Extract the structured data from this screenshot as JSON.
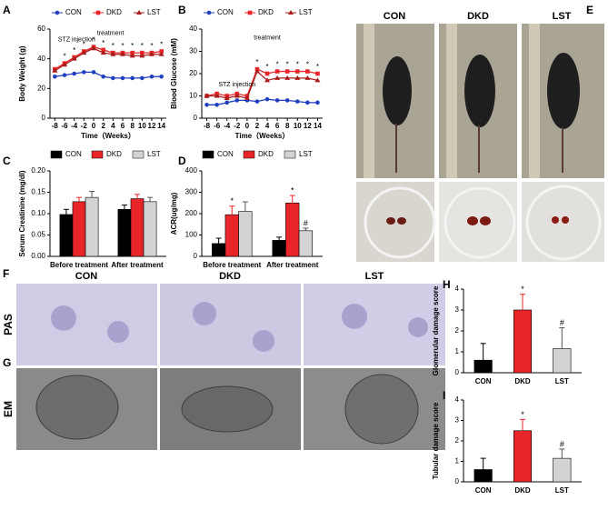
{
  "chart_data": [
    {
      "panel": "A",
      "type": "line",
      "xlabel": "Time（Weeks）",
      "ylabel": "Body Weight (g)",
      "x": [
        -8,
        -6,
        -4,
        -2,
        0,
        2,
        4,
        6,
        8,
        10,
        12,
        14
      ],
      "xlim": [
        -9,
        15
      ],
      "xticks": [
        -8,
        -6,
        -4,
        -2,
        0,
        2,
        4,
        6,
        8,
        10,
        12,
        14
      ],
      "ylim": [
        0,
        60
      ],
      "yticks": [
        0,
        20,
        40,
        60
      ],
      "annotations": [
        "STZ injection",
        "treatment"
      ],
      "series": [
        {
          "name": "CON",
          "color": "#1f3fbf",
          "values": [
            28,
            29,
            30,
            31,
            31,
            28,
            27,
            27,
            27,
            27,
            28,
            28
          ]
        },
        {
          "name": "DKD",
          "color": "#e8262a",
          "values": [
            33,
            37,
            41,
            45,
            48,
            46,
            44,
            44,
            44,
            44,
            44,
            45
          ],
          "marks": [
            null,
            "*",
            "*",
            "*",
            "*",
            "*",
            "*",
            "*",
            "*",
            "*",
            "*",
            "*"
          ]
        },
        {
          "name": "LST",
          "color": "#a81c1c",
          "values": [
            32,
            36,
            40,
            44,
            47,
            44,
            43,
            43,
            42,
            42,
            43,
            43
          ]
        }
      ]
    },
    {
      "panel": "B",
      "type": "line",
      "xlabel": "Time（Weeks）",
      "ylabel": "Blood Glucose (mM)",
      "x": [
        -8,
        -6,
        -4,
        -2,
        0,
        2,
        4,
        6,
        8,
        10,
        12,
        14
      ],
      "xlim": [
        -9,
        15
      ],
      "xticks": [
        -8,
        -6,
        -4,
        -2,
        0,
        2,
        4,
        6,
        8,
        10,
        12,
        14
      ],
      "ylim": [
        0,
        40
      ],
      "yticks": [
        0,
        10,
        20,
        30,
        40
      ],
      "annotations": [
        "STZ injection",
        "treatment"
      ],
      "series": [
        {
          "name": "CON",
          "color": "#1f3fbf",
          "values": [
            6,
            6,
            7,
            8,
            8,
            7.5,
            8.5,
            8,
            8,
            7.5,
            7,
            7
          ]
        },
        {
          "name": "DKD",
          "color": "#e8262a",
          "values": [
            10,
            11,
            10,
            11,
            10,
            22,
            20,
            21,
            21,
            21,
            21,
            20
          ],
          "marks": [
            null,
            null,
            null,
            null,
            null,
            "*",
            "*",
            "*",
            "*",
            "*",
            "*",
            "*"
          ]
        },
        {
          "name": "LST",
          "color": "#a81c1c",
          "values": [
            10,
            10,
            9,
            10,
            9,
            21,
            17,
            18,
            18,
            18,
            18,
            17
          ]
        }
      ]
    },
    {
      "panel": "C",
      "type": "grouped_bar",
      "ylabel": "Serum Creatinine (mg/dl)",
      "categories": [
        "Before treatment",
        "After treatment"
      ],
      "ylim": [
        0,
        0.2
      ],
      "yticks": [
        {
          "value": 0,
          "label": "0.00"
        },
        {
          "value": 0.05,
          "label": "0.05"
        },
        {
          "value": 0.1,
          "label": "0.10"
        },
        {
          "value": 0.15,
          "label": "0.15"
        },
        {
          "value": 0.2,
          "label": "0.20"
        }
      ],
      "series": [
        {
          "name": "CON",
          "color": "#000000",
          "values": [
            0.098,
            0.11
          ],
          "errors": [
            0.012,
            0.01
          ]
        },
        {
          "name": "DKD",
          "color": "#e8262a",
          "values": [
            0.128,
            0.135
          ],
          "errors": [
            0.01,
            0.01
          ]
        },
        {
          "name": "LST",
          "color": "#d3d3d3",
          "values": [
            0.138,
            0.128
          ],
          "errors": [
            0.014,
            0.01
          ]
        }
      ]
    },
    {
      "panel": "D",
      "type": "grouped_bar",
      "ylabel": "ACR(ug/mg)",
      "categories": [
        "Before treatment",
        "After treatment"
      ],
      "ylim": [
        0,
        400
      ],
      "yticks": [
        0,
        100,
        200,
        300,
        400
      ],
      "series": [
        {
          "name": "CON",
          "color": "#000000",
          "values": [
            60,
            75
          ],
          "errors": [
            25,
            15
          ]
        },
        {
          "name": "DKD",
          "color": "#e8262a",
          "values": [
            195,
            250
          ],
          "errors": [
            40,
            35
          ],
          "marks": [
            "*",
            "*"
          ]
        },
        {
          "name": "LST",
          "color": "#d3d3d3",
          "values": [
            210,
            120
          ],
          "errors": [
            45,
            12
          ],
          "marks": [
            null,
            "#"
          ]
        }
      ]
    },
    {
      "panel": "H",
      "type": "bar",
      "ylabel": "Glomerular damage score",
      "categories": [
        "CON",
        "DKD",
        "LST"
      ],
      "colors": [
        "#000000",
        "#e8262a",
        "#d3d3d3"
      ],
      "values": [
        0.6,
        3.0,
        1.15
      ],
      "errors": [
        0.8,
        0.75,
        1.0
      ],
      "marks": [
        null,
        "*",
        "#"
      ],
      "ylim": [
        0,
        4
      ],
      "yticks": [
        0,
        1,
        2,
        3,
        4
      ]
    },
    {
      "panel": "I",
      "type": "bar",
      "ylabel": "Tubular damage score",
      "categories": [
        "CON",
        "DKD",
        "LST"
      ],
      "colors": [
        "#000000",
        "#e8262a",
        "#d3d3d3"
      ],
      "values": [
        0.6,
        2.5,
        1.15
      ],
      "errors": [
        0.55,
        0.55,
        0.45
      ],
      "marks": [
        null,
        "*",
        "#"
      ],
      "ylim": [
        0,
        4
      ],
      "yticks": [
        0,
        1,
        2,
        3,
        4
      ]
    }
  ],
  "image_panels": [
    {
      "panel": "E",
      "columns": [
        "CON",
        "DKD",
        "LST"
      ]
    },
    {
      "panel": "F",
      "row_label": "PAS",
      "columns": [
        "CON",
        "DKD",
        "LST"
      ]
    },
    {
      "panel": "G",
      "row_label": "EM"
    }
  ]
}
